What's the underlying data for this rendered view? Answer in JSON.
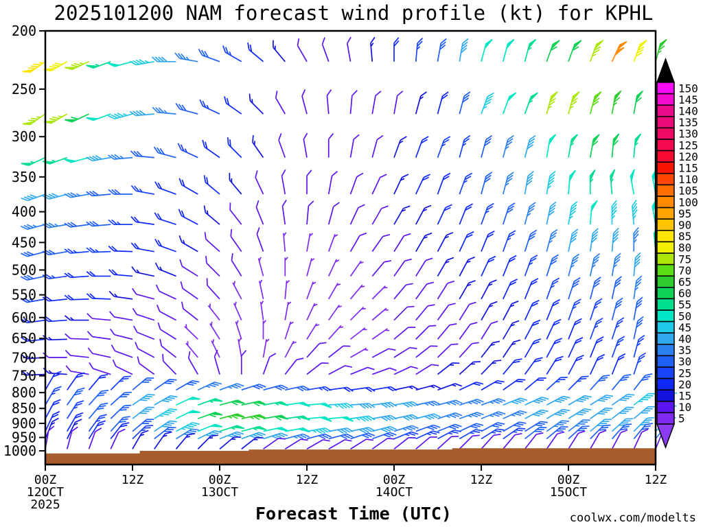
{
  "title": "2025101200 NAM forecast wind profile (kt) for KPHL",
  "watermark": "coolwx.com/modelts",
  "watermark_color": "#f25959",
  "x_axis": {
    "label": "Forecast Time (UTC)",
    "ticks": [
      {
        "hour": 0,
        "time": "00Z",
        "date": "12OCT",
        "year": "2025"
      },
      {
        "hour": 12,
        "time": "12Z"
      },
      {
        "hour": 24,
        "time": "00Z",
        "date": "13OCT"
      },
      {
        "hour": 36,
        "time": "12Z"
      },
      {
        "hour": 48,
        "time": "00Z",
        "date": "14OCT"
      },
      {
        "hour": 60,
        "time": "12Z"
      },
      {
        "hour": 72,
        "time": "00Z",
        "date": "15OCT"
      },
      {
        "hour": 84,
        "time": "12Z"
      }
    ]
  },
  "y_axis": {
    "unit": "hPa",
    "ticks": [
      200,
      250,
      300,
      350,
      400,
      450,
      500,
      550,
      600,
      650,
      700,
      750,
      800,
      850,
      900,
      950,
      1000
    ]
  },
  "colorbar": {
    "unit": "kt",
    "over_color": "#000000",
    "under_color": "#8c3bf5",
    "entries": [
      {
        "value": 5,
        "color": "#7f2af0"
      },
      {
        "value": 10,
        "color": "#5c14f0"
      },
      {
        "value": 15,
        "color": "#1212dc"
      },
      {
        "value": 20,
        "color": "#0f28fa"
      },
      {
        "value": 25,
        "color": "#1743fa"
      },
      {
        "value": 30,
        "color": "#1e5ff5"
      },
      {
        "value": 35,
        "color": "#2b80f0"
      },
      {
        "value": 40,
        "color": "#30a8f0"
      },
      {
        "value": 45,
        "color": "#1fc9e8"
      },
      {
        "value": 50,
        "color": "#00e6c4"
      },
      {
        "value": 55,
        "color": "#00de8f"
      },
      {
        "value": 60,
        "color": "#0fd155"
      },
      {
        "value": 65,
        "color": "#2ecc2e"
      },
      {
        "value": 70,
        "color": "#5cde14"
      },
      {
        "value": 75,
        "color": "#ade60a"
      },
      {
        "value": 80,
        "color": "#f0f000"
      },
      {
        "value": 85,
        "color": "#ffe600"
      },
      {
        "value": 90,
        "color": "#ffc300"
      },
      {
        "value": 95,
        "color": "#ffa300"
      },
      {
        "value": 100,
        "color": "#ff8a00"
      },
      {
        "value": 105,
        "color": "#ff6e00"
      },
      {
        "value": 110,
        "color": "#ff4700"
      },
      {
        "value": 115,
        "color": "#fa1400"
      },
      {
        "value": 120,
        "color": "#fa0a32"
      },
      {
        "value": 125,
        "color": "#f50a50"
      },
      {
        "value": 130,
        "color": "#f00a64"
      },
      {
        "value": 135,
        "color": "#eb0a78"
      },
      {
        "value": 140,
        "color": "#eb0a8c"
      },
      {
        "value": 145,
        "color": "#f50acf"
      },
      {
        "value": 150,
        "color": "#fa0afa"
      }
    ]
  },
  "chart_data": {
    "type": "wind-barb-time-height",
    "units": "kt",
    "station": "KPHL",
    "model": "NAM",
    "init": "2025101200",
    "x_range_hours": [
      0,
      84
    ],
    "y_range_hpa": [
      200,
      1000
    ],
    "y_scale": "log-pressure",
    "forecast_hours": [
      0,
      3,
      6,
      9,
      12,
      15,
      18,
      21,
      24,
      27,
      30,
      33,
      36,
      39,
      42,
      45,
      48,
      51,
      54,
      57,
      60,
      63,
      66,
      69,
      72,
      75,
      78,
      81,
      84
    ],
    "pressure_levels": [
      225,
      275,
      325,
      374,
      420,
      466,
      512,
      559,
      606,
      652,
      699,
      746,
      792,
      839,
      884,
      928,
      955,
      993
    ],
    "speed_kt": [
      [
        85,
        80,
        75,
        55,
        50,
        45,
        40,
        35,
        30,
        25,
        20,
        15,
        12,
        10,
        12,
        15,
        20,
        25,
        30,
        40,
        50,
        50,
        55,
        60,
        60,
        75,
        100,
        80,
        65
      ],
      [
        75,
        75,
        60,
        50,
        45,
        40,
        35,
        30,
        25,
        20,
        15,
        12,
        10,
        8,
        8,
        10,
        12,
        15,
        20,
        30,
        45,
        50,
        55,
        75,
        75,
        70,
        65,
        60,
        60
      ],
      [
        55,
        55,
        50,
        40,
        35,
        30,
        28,
        25,
        20,
        18,
        15,
        12,
        10,
        8,
        10,
        12,
        15,
        20,
        25,
        25,
        30,
        35,
        40,
        50,
        55,
        60,
        60,
        55,
        50
      ],
      [
        40,
        38,
        35,
        30,
        28,
        25,
        22,
        20,
        18,
        15,
        12,
        10,
        8,
        8,
        10,
        12,
        15,
        18,
        20,
        25,
        30,
        35,
        40,
        45,
        50,
        55,
        55,
        50,
        50
      ],
      [
        35,
        33,
        30,
        28,
        25,
        22,
        20,
        18,
        15,
        12,
        10,
        8,
        8,
        8,
        10,
        12,
        15,
        15,
        18,
        20,
        25,
        30,
        35,
        40,
        45,
        50,
        45,
        45,
        50
      ],
      [
        30,
        28,
        26,
        25,
        22,
        20,
        18,
        15,
        12,
        10,
        8,
        7,
        5,
        7,
        8,
        10,
        12,
        15,
        15,
        18,
        20,
        25,
        30,
        35,
        40,
        40,
        38,
        35,
        55
      ],
      [
        28,
        25,
        22,
        20,
        18,
        15,
        15,
        12,
        10,
        8,
        7,
        5,
        5,
        5,
        7,
        8,
        10,
        12,
        15,
        15,
        18,
        20,
        25,
        30,
        35,
        35,
        35,
        40,
        45
      ],
      [
        25,
        22,
        20,
        18,
        15,
        12,
        10,
        10,
        8,
        7,
        5,
        5,
        5,
        5,
        5,
        7,
        8,
        10,
        12,
        15,
        15,
        18,
        20,
        25,
        28,
        30,
        30,
        35,
        40
      ],
      [
        20,
        18,
        15,
        12,
        12,
        10,
        8,
        8,
        7,
        5,
        5,
        5,
        5,
        5,
        5,
        7,
        8,
        10,
        10,
        12,
        15,
        15,
        18,
        20,
        25,
        25,
        28,
        30,
        35
      ],
      [
        18,
        15,
        12,
        12,
        10,
        8,
        8,
        7,
        5,
        5,
        5,
        5,
        7,
        7,
        5,
        7,
        8,
        10,
        10,
        12,
        12,
        15,
        18,
        20,
        22,
        25,
        25,
        28,
        30
      ],
      [
        15,
        12,
        12,
        10,
        10,
        8,
        8,
        7,
        7,
        5,
        5,
        7,
        8,
        8,
        7,
        8,
        10,
        10,
        12,
        12,
        15,
        15,
        18,
        20,
        22,
        22,
        25,
        25,
        28
      ],
      [
        15,
        15,
        12,
        12,
        10,
        10,
        10,
        8,
        8,
        8,
        8,
        10,
        12,
        12,
        10,
        10,
        12,
        12,
        15,
        15,
        15,
        18,
        18,
        20,
        20,
        22,
        22,
        25,
        25
      ],
      [
        20,
        20,
        22,
        25,
        28,
        30,
        32,
        35,
        35,
        32,
        30,
        28,
        25,
        22,
        20,
        18,
        15,
        15,
        15,
        18,
        18,
        20,
        22,
        25,
        25,
        28,
        30,
        32,
        35
      ],
      [
        25,
        28,
        30,
        32,
        38,
        42,
        48,
        55,
        60,
        60,
        55,
        50,
        48,
        45,
        42,
        40,
        38,
        35,
        35,
        35,
        35,
        38,
        38,
        40,
        40,
        42,
        42,
        45,
        45
      ],
      [
        22,
        25,
        28,
        32,
        38,
        45,
        52,
        60,
        65,
        65,
        60,
        55,
        50,
        48,
        45,
        42,
        40,
        38,
        35,
        35,
        35,
        35,
        38,
        38,
        40,
        40,
        42,
        42,
        45
      ],
      [
        18,
        20,
        25,
        28,
        32,
        38,
        45,
        50,
        55,
        55,
        50,
        48,
        45,
        42,
        40,
        38,
        35,
        32,
        30,
        30,
        30,
        32,
        32,
        35,
        35,
        38,
        38,
        40,
        40
      ],
      [
        15,
        15,
        18,
        20,
        25,
        28,
        35,
        38,
        40,
        40,
        38,
        35,
        32,
        30,
        28,
        28,
        25,
        25,
        25,
        25,
        25,
        25,
        28,
        28,
        30,
        30,
        32,
        32,
        35
      ],
      [
        10,
        10,
        12,
        12,
        15,
        15,
        15,
        15,
        15,
        15,
        12,
        12,
        12,
        10,
        10,
        10,
        8,
        8,
        8,
        8,
        10,
        10,
        10,
        10,
        12,
        12,
        12,
        12,
        12
      ]
    ],
    "direction_deg": [
      [
        235,
        240,
        245,
        250,
        255,
        260,
        270,
        280,
        290,
        300,
        310,
        320,
        330,
        340,
        350,
        355,
        360,
        5,
        10,
        10,
        15,
        15,
        15,
        20,
        20,
        20,
        25,
        20,
        15
      ],
      [
        235,
        240,
        245,
        250,
        255,
        265,
        275,
        285,
        295,
        305,
        315,
        330,
        345,
        355,
        5,
        10,
        10,
        15,
        15,
        15,
        20,
        20,
        20,
        15,
        15,
        15,
        10,
        10,
        10
      ],
      [
        245,
        250,
        255,
        260,
        265,
        275,
        285,
        295,
        305,
        315,
        325,
        340,
        350,
        360,
        10,
        15,
        20,
        20,
        20,
        15,
        15,
        15,
        15,
        10,
        10,
        10,
        5,
        5,
        360
      ],
      [
        250,
        255,
        260,
        265,
        270,
        280,
        290,
        300,
        310,
        320,
        335,
        350,
        360,
        10,
        20,
        25,
        25,
        25,
        20,
        20,
        15,
        15,
        10,
        10,
        5,
        360,
        355,
        350,
        350
      ],
      [
        255,
        260,
        262,
        265,
        270,
        278,
        288,
        298,
        310,
        322,
        338,
        352,
        5,
        15,
        25,
        30,
        30,
        28,
        25,
        22,
        20,
        18,
        15,
        12,
        10,
        5,
        360,
        355,
        350
      ],
      [
        255,
        260,
        265,
        268,
        272,
        280,
        290,
        300,
        312,
        325,
        340,
        355,
        10,
        20,
        30,
        35,
        32,
        30,
        28,
        25,
        22,
        20,
        18,
        15,
        12,
        8,
        5,
        360,
        355
      ],
      [
        258,
        262,
        266,
        270,
        275,
        282,
        292,
        302,
        315,
        328,
        345,
        360,
        15,
        25,
        35,
        40,
        35,
        32,
        30,
        28,
        25,
        22,
        20,
        18,
        15,
        12,
        10,
        5,
        360
      ],
      [
        260,
        264,
        268,
        272,
        278,
        285,
        295,
        305,
        318,
        332,
        348,
        5,
        20,
        30,
        40,
        45,
        40,
        36,
        32,
        30,
        28,
        25,
        22,
        20,
        18,
        15,
        12,
        8,
        5
      ],
      [
        262,
        266,
        270,
        275,
        280,
        288,
        298,
        308,
        322,
        336,
        352,
        10,
        25,
        35,
        45,
        50,
        45,
        40,
        36,
        32,
        30,
        28,
        25,
        22,
        20,
        18,
        15,
        10,
        8
      ],
      [
        264,
        268,
        272,
        278,
        284,
        292,
        302,
        314,
        328,
        342,
        360,
        18,
        32,
        42,
        52,
        55,
        50,
        45,
        40,
        36,
        32,
        30,
        28,
        25,
        22,
        20,
        18,
        12,
        10
      ],
      [
        266,
        270,
        276,
        282,
        290,
        298,
        308,
        320,
        334,
        350,
        10,
        28,
        42,
        52,
        60,
        62,
        58,
        52,
        46,
        42,
        38,
        34,
        30,
        28,
        25,
        22,
        20,
        15,
        12
      ],
      [
        268,
        274,
        280,
        288,
        296,
        306,
        316,
        330,
        344,
        360,
        20,
        38,
        52,
        62,
        68,
        70,
        65,
        58,
        52,
        48,
        44,
        40,
        36,
        32,
        28,
        25,
        22,
        18,
        15
      ],
      [
        30,
        35,
        40,
        45,
        50,
        55,
        60,
        65,
        70,
        72,
        75,
        78,
        80,
        82,
        82,
        80,
        78,
        75,
        70,
        65,
        60,
        55,
        50,
        48,
        45,
        42,
        40,
        38,
        35
      ],
      [
        30,
        35,
        42,
        48,
        55,
        60,
        65,
        70,
        75,
        78,
        80,
        82,
        85,
        85,
        85,
        82,
        80,
        78,
        75,
        72,
        70,
        68,
        65,
        62,
        60,
        58,
        55,
        52,
        50
      ],
      [
        28,
        32,
        40,
        46,
        52,
        58,
        64,
        70,
        75,
        78,
        80,
        82,
        85,
        85,
        82,
        80,
        78,
        75,
        72,
        70,
        68,
        65,
        62,
        60,
        58,
        55,
        52,
        50,
        48
      ],
      [
        25,
        30,
        36,
        42,
        50,
        56,
        62,
        68,
        72,
        75,
        78,
        80,
        80,
        80,
        78,
        75,
        72,
        70,
        68,
        65,
        62,
        60,
        58,
        55,
        52,
        50,
        48,
        45,
        45
      ],
      [
        22,
        26,
        32,
        38,
        46,
        52,
        58,
        64,
        68,
        70,
        72,
        75,
        75,
        75,
        72,
        70,
        68,
        65,
        62,
        60,
        58,
        55,
        52,
        50,
        48,
        45,
        42,
        40,
        38
      ],
      [
        10,
        15,
        20,
        25,
        30,
        35,
        40,
        45,
        50,
        52,
        55,
        58,
        60,
        60,
        58,
        55,
        52,
        50,
        48,
        45,
        42,
        40,
        38,
        35,
        32,
        30,
        28,
        25,
        22
      ]
    ],
    "terrain": {
      "color": "#a65c2c",
      "segments": [
        {
          "from_hour": 0,
          "to_hour": 13,
          "surface_hpa": 1010
        },
        {
          "from_hour": 13,
          "to_hour": 28,
          "surface_hpa": 1000
        },
        {
          "from_hour": 28,
          "to_hour": 56,
          "surface_hpa": 995
        },
        {
          "from_hour": 56,
          "to_hour": 84,
          "surface_hpa": 990
        }
      ]
    }
  }
}
